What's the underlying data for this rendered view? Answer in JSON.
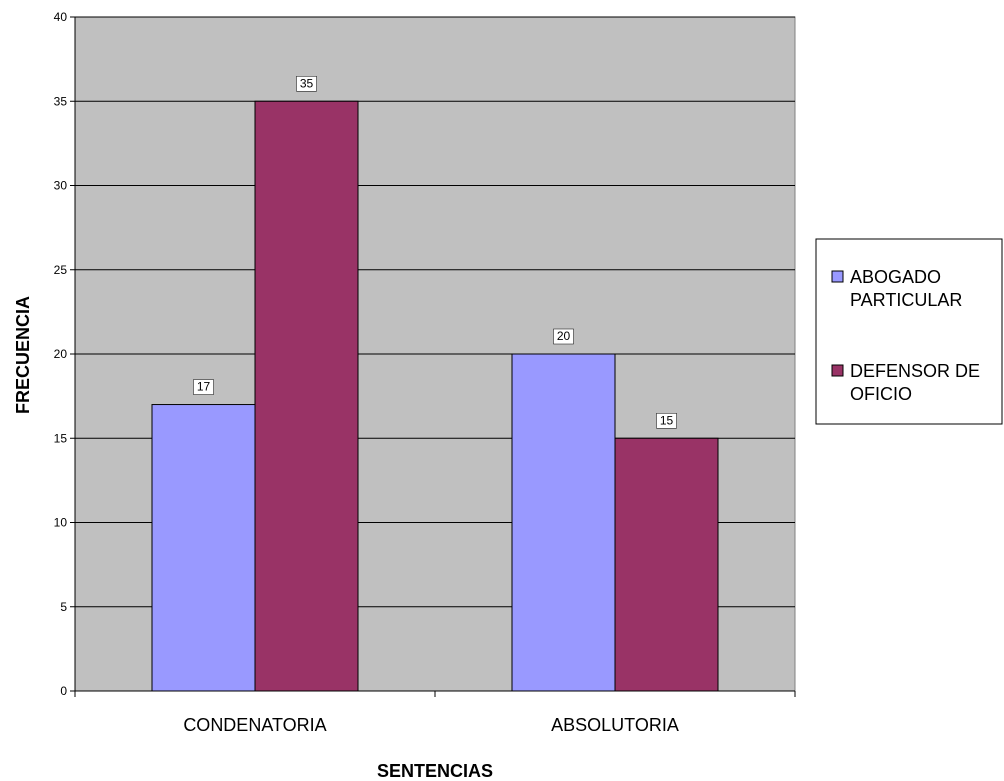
{
  "chart_data": {
    "type": "bar",
    "categories": [
      "CONDENATORIA",
      "ABSOLUTORIA"
    ],
    "series": [
      {
        "name": "ABOGADO PARTICULAR",
        "values": [
          17,
          20
        ],
        "color": "#9999ff"
      },
      {
        "name": "DEFENSOR DE OFICIO",
        "values": [
          35,
          15
        ],
        "color": "#993366"
      }
    ],
    "xlabel": "SENTENCIAS",
    "ylabel": "FRECUENCIA",
    "ylim": [
      0,
      40
    ],
    "yticks": [
      0,
      5,
      10,
      15,
      20,
      25,
      30,
      35,
      40
    ],
    "grid": true,
    "plot_background": "#c0c0c0",
    "data_labels": true,
    "legend_position": "right"
  }
}
